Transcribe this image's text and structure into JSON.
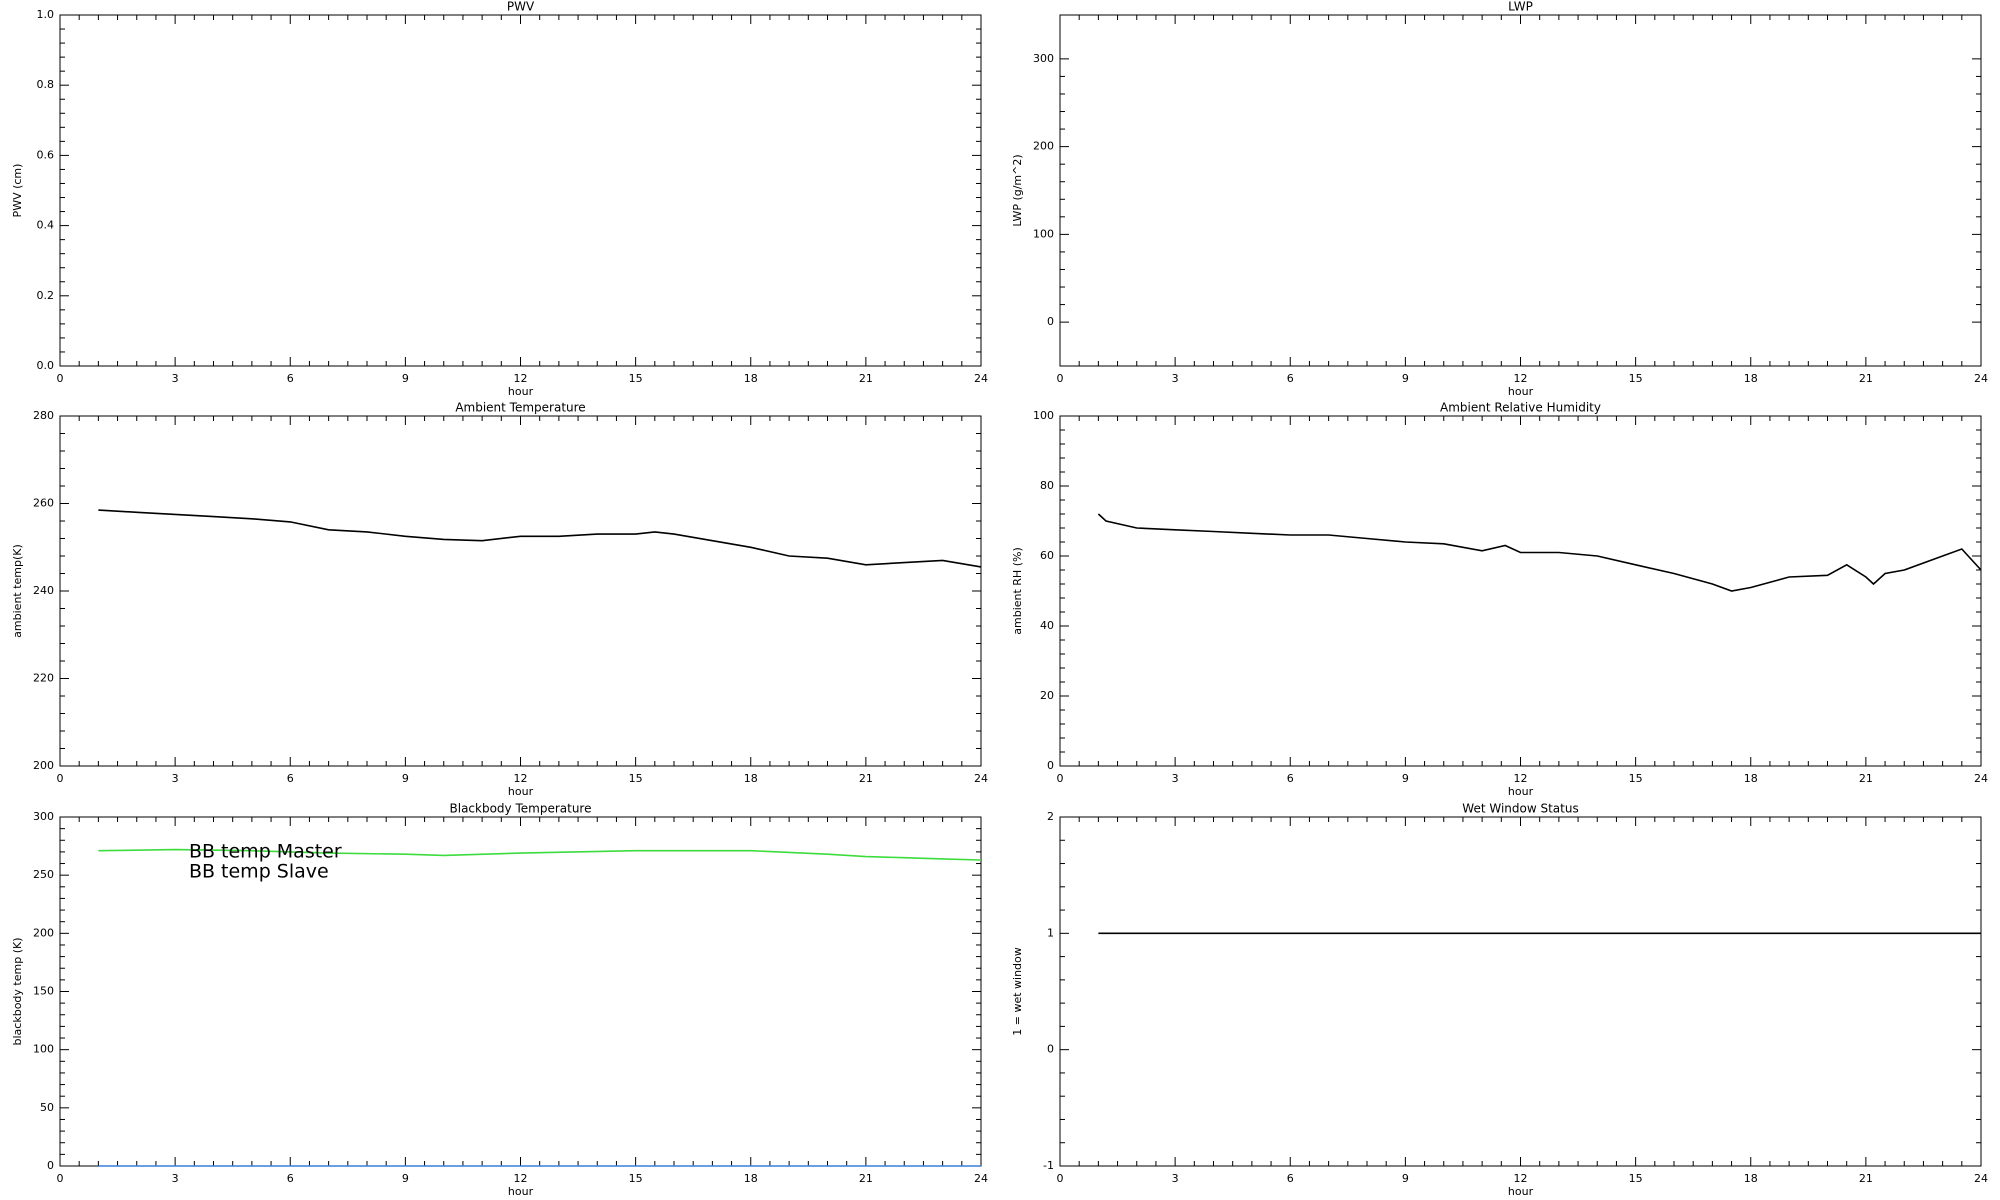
{
  "chart_data": [
    {
      "type": "line",
      "title": "PWV",
      "xlabel": "hour",
      "ylabel": "PWV (cm)",
      "xlim": [
        0,
        24
      ],
      "xticks": [
        0,
        3,
        6,
        9,
        12,
        15,
        18,
        21,
        24
      ],
      "ylim": [
        0,
        1
      ],
      "yticks": [
        {
          "value": 0,
          "label": "0.0"
        },
        {
          "value": 0.2,
          "label": "0.2"
        },
        {
          "value": 0.4,
          "label": "0.4"
        },
        {
          "value": 0.6,
          "label": "0.6"
        },
        {
          "value": 0.8,
          "label": "0.8"
        },
        {
          "value": 1,
          "label": "1.0"
        }
      ]
    },
    {
      "type": "line",
      "title": "LWP",
      "xlabel": "hour",
      "ylabel": "LWP (g/m^2)",
      "xlim": [
        0,
        24
      ],
      "xticks": [
        0,
        3,
        6,
        9,
        12,
        15,
        18,
        21,
        24
      ],
      "ylim": [
        -50,
        350
      ],
      "yticks": [
        0,
        100,
        200,
        300
      ]
    },
    {
      "type": "line",
      "title": "Ambient Temperature",
      "xlabel": "hour",
      "ylabel": "ambient temp(K)",
      "xlim": [
        0,
        24
      ],
      "xticks": [
        0,
        3,
        6,
        9,
        12,
        15,
        18,
        21,
        24
      ],
      "ylim": [
        200,
        280
      ],
      "yticks": [
        200,
        220,
        240,
        260,
        280
      ],
      "series": [
        {
          "color": "#000000",
          "x": [
            1,
            2,
            3,
            4,
            5,
            6,
            7,
            8,
            9,
            10,
            11,
            12,
            13,
            14,
            15,
            15.5,
            16,
            17,
            18,
            19,
            20,
            21,
            22,
            23,
            24
          ],
          "values": [
            258.5,
            258,
            257.5,
            257,
            256.5,
            255.8,
            254,
            253.5,
            252.5,
            251.8,
            251.5,
            252.5,
            252.5,
            253,
            253,
            253.5,
            253,
            251.5,
            250,
            248,
            247.5,
            246,
            246.5,
            247,
            245.5
          ]
        }
      ]
    },
    {
      "type": "line",
      "title": "Ambient Relative Humidity",
      "xlabel": "hour",
      "ylabel": "ambient RH (%)",
      "xlim": [
        0,
        24
      ],
      "xticks": [
        0,
        3,
        6,
        9,
        12,
        15,
        18,
        21,
        24
      ],
      "ylim": [
        0,
        100
      ],
      "yticks": [
        0,
        20,
        40,
        60,
        80,
        100
      ],
      "series": [
        {
          "color": "#000000",
          "x": [
            1,
            1.2,
            2,
            3,
            4,
            5,
            6,
            7,
            8,
            9,
            10,
            11,
            11.6,
            12,
            13,
            14,
            15,
            16,
            17,
            17.5,
            18,
            19,
            20,
            20.5,
            21,
            21.2,
            21.5,
            22,
            23,
            23.5,
            24
          ],
          "values": [
            72,
            70,
            68,
            67.5,
            67,
            66.5,
            66,
            66,
            65,
            64,
            63.5,
            61.5,
            63,
            61,
            61,
            60,
            57.5,
            55,
            52,
            50,
            51,
            54,
            54.5,
            57.5,
            54,
            52,
            55,
            56,
            60,
            62,
            56
          ]
        }
      ]
    },
    {
      "type": "line",
      "title": "Blackbody Temperature",
      "xlabel": "hour",
      "ylabel": "blackbody temp (K)",
      "xlim": [
        0,
        24
      ],
      "xticks": [
        0,
        3,
        6,
        9,
        12,
        15,
        18,
        21,
        24
      ],
      "ylim": [
        0,
        300
      ],
      "yticks": [
        0,
        50,
        100,
        150,
        200,
        250,
        300
      ],
      "legend": "upper left",
      "series": [
        {
          "name": "BB temp Master",
          "color": "#3a7fe0",
          "x": [
            1,
            24
          ],
          "values": [
            0,
            0
          ]
        },
        {
          "name": "BB temp Slave",
          "color": "#3ddc3d",
          "x": [
            1,
            3,
            5,
            7,
            9,
            10,
            12,
            15,
            18,
            20,
            21,
            22,
            23,
            24
          ],
          "values": [
            271,
            272,
            271,
            269,
            268,
            267,
            269,
            271,
            271,
            268,
            266,
            265,
            264,
            263
          ]
        }
      ]
    },
    {
      "type": "line",
      "title": "Wet Window Status",
      "xlabel": "hour",
      "ylabel": "1 = wet window",
      "xlim": [
        0,
        24
      ],
      "xticks": [
        0,
        3,
        6,
        9,
        12,
        15,
        18,
        21,
        24
      ],
      "ylim": [
        -1,
        2
      ],
      "yticks": [
        -1,
        0,
        1,
        2
      ],
      "series": [
        {
          "color": "#000000",
          "x": [
            1,
            24
          ],
          "values": [
            1,
            1
          ]
        }
      ]
    }
  ]
}
